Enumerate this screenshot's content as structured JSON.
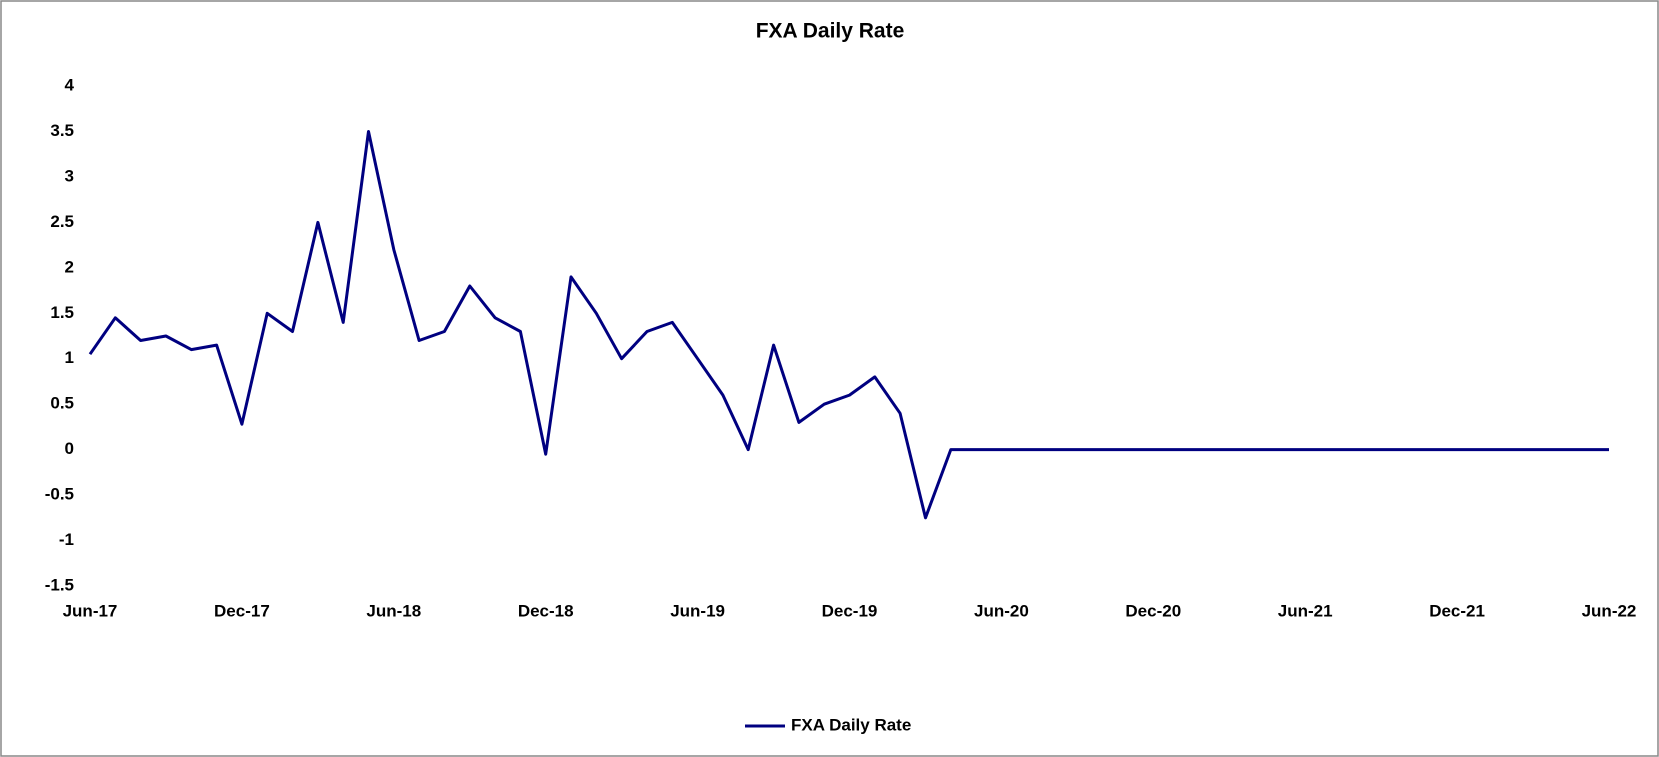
{
  "chart_data": {
    "type": "line",
    "title": "FXA Daily Rate",
    "x": [
      "Jun-17",
      "Jul-17",
      "Aug-17",
      "Sep-17",
      "Oct-17",
      "Nov-17",
      "Dec-17",
      "Jan-18",
      "Feb-18",
      "Mar-18",
      "Apr-18",
      "May-18",
      "Jun-18",
      "Jul-18",
      "Aug-18",
      "Sep-18",
      "Oct-18",
      "Nov-18",
      "Dec-18",
      "Jan-19",
      "Feb-19",
      "Mar-19",
      "Apr-19",
      "May-19",
      "Jun-19",
      "Jul-19",
      "Aug-19",
      "Sep-19",
      "Oct-19",
      "Nov-19",
      "Dec-19",
      "Jan-20",
      "Feb-20",
      "Mar-20",
      "Apr-20",
      "May-20",
      "Jun-20",
      "Jul-20",
      "Aug-20",
      "Sep-20",
      "Oct-20",
      "Nov-20",
      "Dec-20",
      "Jan-21",
      "Feb-21",
      "Mar-21",
      "Apr-21",
      "May-21",
      "Jun-21",
      "Jul-21",
      "Aug-21",
      "Sep-21",
      "Oct-21",
      "Nov-21",
      "Dec-21",
      "Jan-22",
      "Feb-22",
      "Mar-22",
      "Apr-22",
      "May-22",
      "Jun-22"
    ],
    "series": [
      {
        "name": "FXA Daily Rate",
        "color": "#000080",
        "values": [
          1.05,
          1.45,
          1.2,
          1.25,
          1.1,
          1.15,
          0.28,
          1.5,
          1.3,
          2.5,
          1.4,
          3.5,
          2.2,
          1.2,
          1.3,
          1.8,
          1.45,
          1.3,
          -0.05,
          1.9,
          1.5,
          1.0,
          1.3,
          1.4,
          1.0,
          0.6,
          0.0,
          1.15,
          0.3,
          0.5,
          0.6,
          0.8,
          0.4,
          -0.75,
          0.0,
          0,
          0,
          0,
          0,
          0,
          0,
          0,
          0,
          0,
          0,
          0,
          0,
          0,
          0,
          0,
          0,
          0,
          0,
          0,
          0,
          0,
          0,
          0,
          0,
          0,
          0
        ]
      }
    ],
    "xlim": [
      "Jun-17",
      "Jun-22"
    ],
    "xticks": [
      "Jun-17",
      "Dec-17",
      "Jun-18",
      "Dec-18",
      "Jun-19",
      "Dec-19",
      "Jun-20",
      "Dec-20",
      "Jun-21",
      "Dec-21",
      "Jun-22"
    ],
    "ylim": [
      -1.5,
      4
    ],
    "yticks": [
      4,
      3.5,
      3,
      2.5,
      2,
      1.5,
      1,
      0.5,
      0,
      -0.5,
      -1,
      -1.5
    ],
    "grid": false,
    "legend": "bottom"
  }
}
